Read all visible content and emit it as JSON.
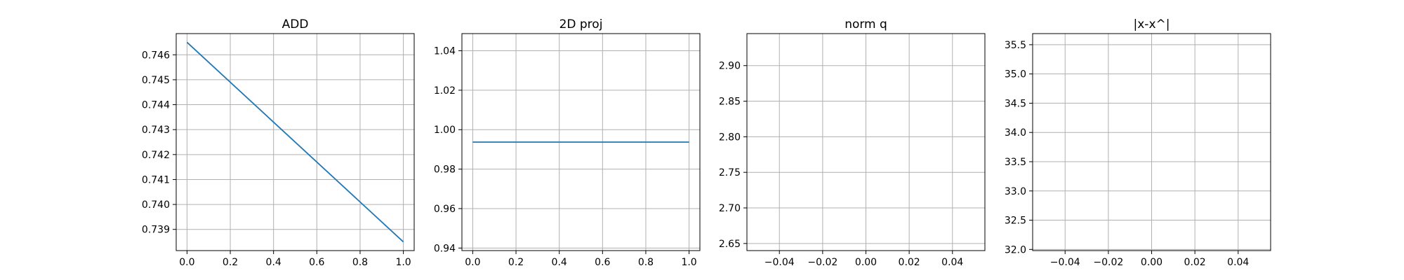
{
  "figure": {
    "background": "#ffffff"
  },
  "chart_data": [
    {
      "type": "line",
      "title": "ADD",
      "xlabel": "",
      "ylabel": "",
      "xlim": [
        -0.05,
        1.05
      ],
      "ylim": [
        0.73815,
        0.74685
      ],
      "x_ticks": [
        0.0,
        0.2,
        0.4,
        0.6,
        0.8,
        1.0
      ],
      "x_tick_labels": [
        "0.0",
        "0.2",
        "0.4",
        "0.6",
        "0.8",
        "1.0"
      ],
      "y_ticks": [
        0.739,
        0.74,
        0.741,
        0.742,
        0.743,
        0.744,
        0.745,
        0.746
      ],
      "y_tick_labels": [
        "0.739",
        "0.740",
        "0.741",
        "0.742",
        "0.743",
        "0.744",
        "0.745",
        "0.746"
      ],
      "grid": true,
      "series": [
        {
          "color": "#1f77b4",
          "x": [
            0.0,
            1.0
          ],
          "y": [
            0.7465,
            0.7385
          ]
        }
      ]
    },
    {
      "type": "line",
      "title": "2D proj",
      "xlabel": "",
      "ylabel": "",
      "xlim": [
        -0.05,
        1.05
      ],
      "ylim": [
        0.9387,
        1.0487
      ],
      "x_ticks": [
        0.0,
        0.2,
        0.4,
        0.6,
        0.8,
        1.0
      ],
      "x_tick_labels": [
        "0.0",
        "0.2",
        "0.4",
        "0.6",
        "0.8",
        "1.0"
      ],
      "y_ticks": [
        0.94,
        0.96,
        0.98,
        1.0,
        1.02,
        1.04
      ],
      "y_tick_labels": [
        "0.94",
        "0.96",
        "0.98",
        "1.00",
        "1.02",
        "1.04"
      ],
      "grid": true,
      "series": [
        {
          "color": "#1f77b4",
          "x": [
            0.0,
            1.0
          ],
          "y": [
            0.9937,
            0.9937
          ]
        }
      ]
    },
    {
      "type": "line",
      "title": "norm q",
      "xlabel": "",
      "ylabel": "",
      "xlim": [
        -0.055,
        0.055
      ],
      "ylim": [
        2.64,
        2.945
      ],
      "x_ticks": [
        -0.04,
        -0.02,
        0.0,
        0.02,
        0.04
      ],
      "x_tick_labels": [
        "−0.04",
        "−0.02",
        "0.00",
        "0.02",
        "0.04"
      ],
      "y_ticks": [
        2.65,
        2.7,
        2.75,
        2.8,
        2.85,
        2.9
      ],
      "y_tick_labels": [
        "2.65",
        "2.70",
        "2.75",
        "2.80",
        "2.85",
        "2.90"
      ],
      "grid": true,
      "series": []
    },
    {
      "type": "line",
      "title": "|x-x^|",
      "xlabel": "",
      "ylabel": "",
      "xlim": [
        -0.055,
        0.055
      ],
      "ylim": [
        31.98,
        35.69
      ],
      "x_ticks": [
        -0.04,
        -0.02,
        0.0,
        0.02,
        0.04
      ],
      "x_tick_labels": [
        "−0.04",
        "−0.02",
        "0.00",
        "0.02",
        "0.04"
      ],
      "y_ticks": [
        32.0,
        32.5,
        33.0,
        33.5,
        34.0,
        34.5,
        35.0,
        35.5
      ],
      "y_tick_labels": [
        "32.0",
        "32.5",
        "33.0",
        "33.5",
        "34.0",
        "34.5",
        "35.0",
        "35.5"
      ],
      "grid": true,
      "series": []
    }
  ]
}
